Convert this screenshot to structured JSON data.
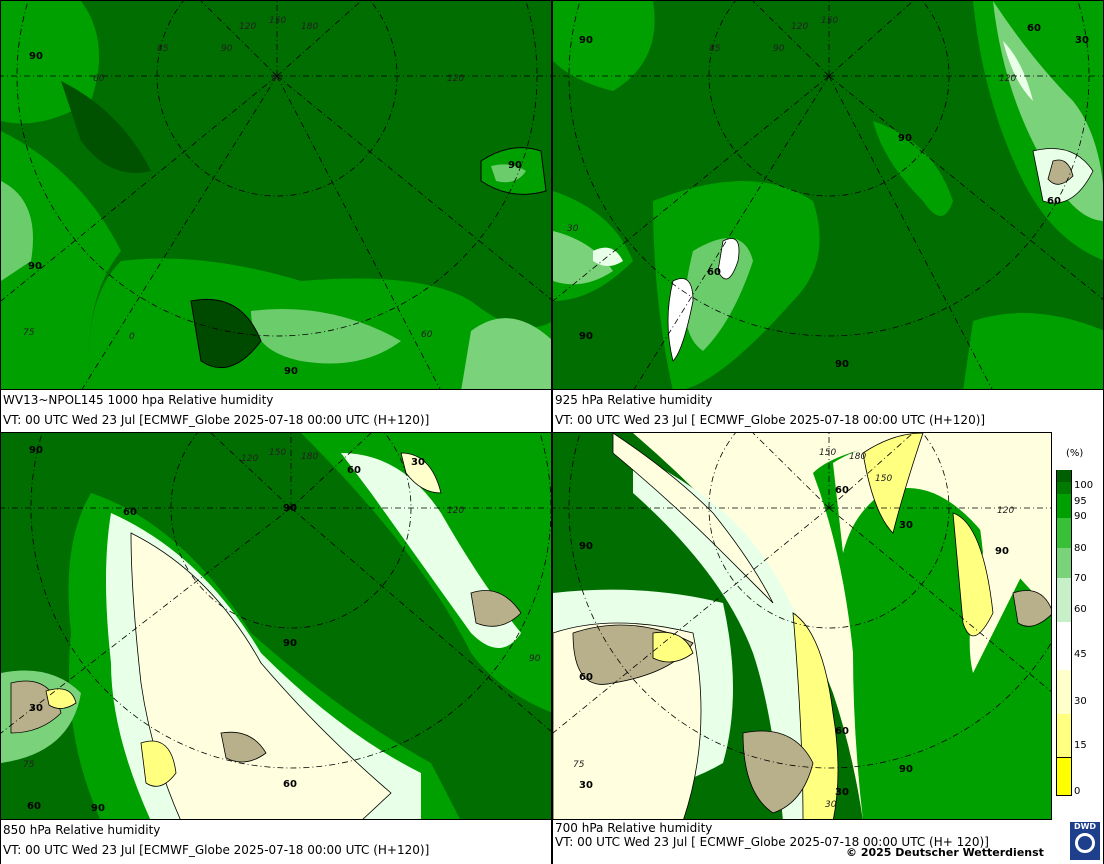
{
  "panels": [
    {
      "caption_line1": "WV13~NPOL145 1000 hpa Relative humidity",
      "caption_line2": "VT: 00 UTC Wed  23 Jul [ECMWF_Globe 2025-07-18 00:00 UTC  (H+120)]",
      "contour_labels": [
        "90",
        "90",
        "90",
        "90",
        "60"
      ]
    },
    {
      "caption_line1": "925 hPa Relative humidity",
      "caption_line2": "VT: 00 UTC Wed  23 Jul [ ECMWF_Globe 2025-07-18 00:00 UTC  (H+120)]",
      "contour_labels": [
        "90",
        "60",
        "30",
        "90",
        "60",
        "90",
        "90"
      ]
    },
    {
      "caption_line1": "850 hPa  Relative humidity",
      "caption_line2": "VT: 00 UTC Wed  23 Jul [ECMWF_Globe 2025-07-18 00:00 UTC  (H+120)]",
      "contour_labels": [
        "90",
        "60",
        "90",
        "30",
        "60",
        "90",
        "30",
        "60",
        "90",
        "60"
      ]
    },
    {
      "caption_line1": "700 hPa Relative humidity",
      "caption_line2": "VT: 00 UTC Wed  23 Jul [ ECMWF_Globe 2025-07-18 00:00 UTC  (H+ 120)]",
      "contour_labels": [
        "90",
        "60",
        "30",
        "90",
        "60",
        "30",
        "90",
        "60",
        "30"
      ]
    }
  ],
  "grid_labels": [
    "150",
    "180",
    "120",
    "90",
    "85",
    "60",
    "30",
    "0",
    "75",
    "120",
    "90"
  ],
  "legend": {
    "unit": "(%)",
    "levels": [
      "100",
      "95",
      "90",
      "80",
      "70",
      "60",
      "45",
      "30",
      "15",
      "0"
    ],
    "colors": [
      "#005f00",
      "#007a00",
      "#00a000",
      "#38c038",
      "#7ad27a",
      "#c8f0c8",
      "#ffffff",
      "#ffffcc",
      "#ffff80",
      "#ffff00"
    ]
  },
  "copyright": "© 2025 Deutscher Wetterdienst",
  "logo_text": "DWD"
}
